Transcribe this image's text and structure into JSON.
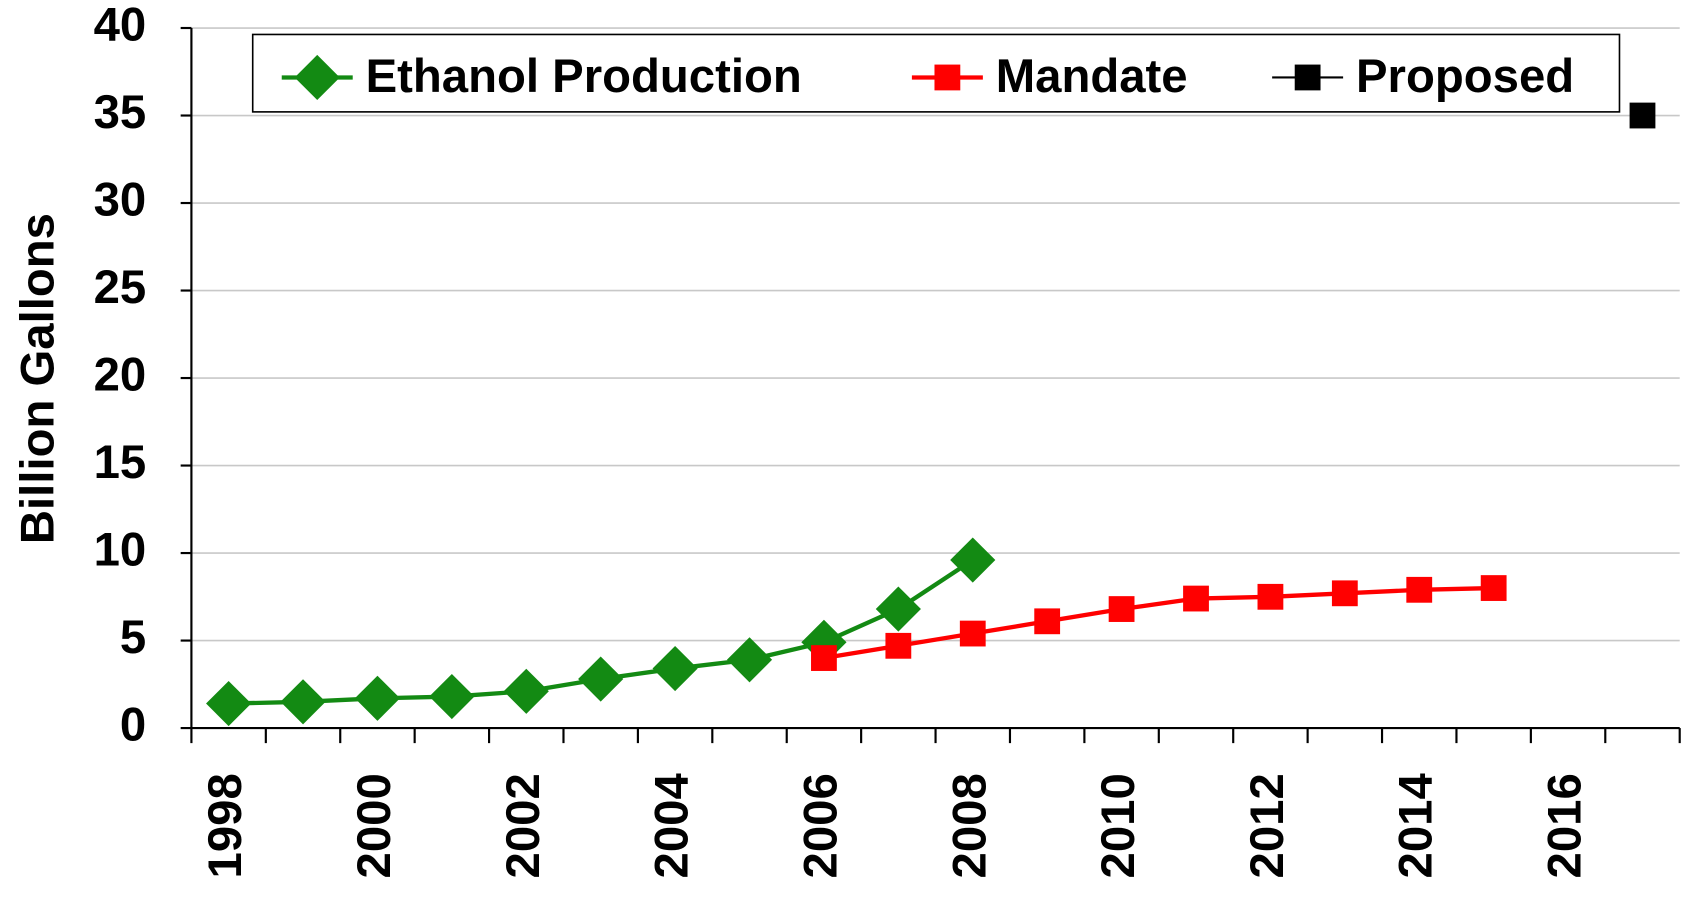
{
  "chart_data": {
    "type": "line",
    "ylabel": "Billion Gallons",
    "categories": [
      "1998",
      null,
      "2000",
      null,
      "2002",
      null,
      "2004",
      null,
      "2006",
      null,
      "2008",
      null,
      "2010",
      null,
      "2012",
      null,
      "2014",
      null,
      "2016",
      null
    ],
    "series": [
      {
        "name": "Ethanol Production",
        "color": "#138a13",
        "marker": "diamond",
        "values": [
          1.4,
          1.5,
          1.7,
          1.8,
          2.1,
          2.8,
          3.4,
          3.9,
          4.9,
          6.8,
          9.6,
          null,
          null,
          null,
          null,
          null,
          null,
          null,
          null,
          null
        ]
      },
      {
        "name": "Mandate",
        "color": "#ff0000",
        "marker": "square",
        "values": [
          null,
          null,
          null,
          null,
          null,
          null,
          null,
          null,
          4.0,
          4.7,
          5.4,
          6.1,
          6.8,
          7.4,
          7.5,
          7.7,
          7.9,
          8.0,
          null,
          null
        ]
      },
      {
        "name": "Proposed",
        "color": "#000000",
        "marker": "square",
        "values": [
          null,
          null,
          null,
          null,
          null,
          null,
          null,
          null,
          null,
          null,
          null,
          null,
          null,
          null,
          null,
          null,
          null,
          null,
          null,
          35
        ]
      }
    ],
    "ylim": [
      0,
      40
    ],
    "yticks": [
      0,
      5,
      10,
      15,
      20,
      25,
      30,
      35,
      40
    ],
    "grid": true,
    "legend": "top"
  }
}
